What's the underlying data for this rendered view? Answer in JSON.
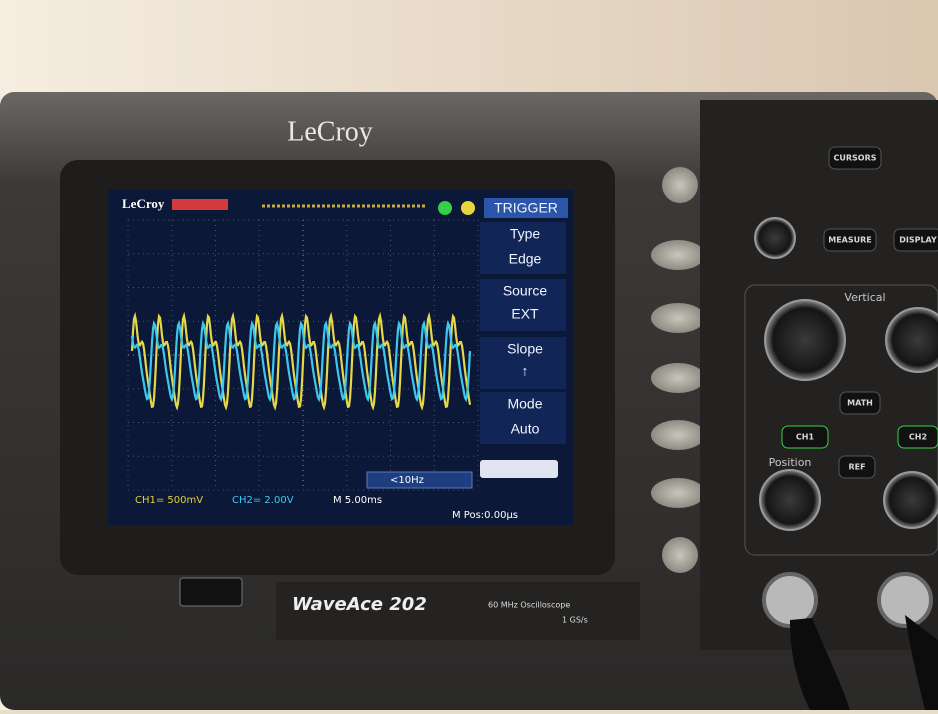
{
  "device": {
    "brand": "LeCroy",
    "series": "WaveAce",
    "model": "202",
    "spec": "60 MHz Oscilloscope",
    "rate": "1 GS/s"
  },
  "screen": {
    "logo": "LeCroy",
    "menu": {
      "title": "TRIGGER",
      "items": [
        {
          "label": "Type",
          "value": "Edge"
        },
        {
          "label": "Source",
          "value": "EXT"
        },
        {
          "label": "Slope",
          "value": "↑"
        },
        {
          "label": "Mode",
          "value": "Auto"
        }
      ]
    },
    "status": {
      "ch1": "CH1= 500mV",
      "ch2": "CH2= 2.00V",
      "timebase": "M 5.00ms",
      "trigger_freq": "<10Hz",
      "position": "M Pos:0.00μs"
    }
  },
  "panel": {
    "cursors": "CURSORS",
    "measure": "MEASURE",
    "display": "DISPLAY",
    "vertical": "Vertical",
    "math": "MATH",
    "ch1": "CH1",
    "ch2": "CH2",
    "ref": "REF",
    "position": "Position"
  }
}
